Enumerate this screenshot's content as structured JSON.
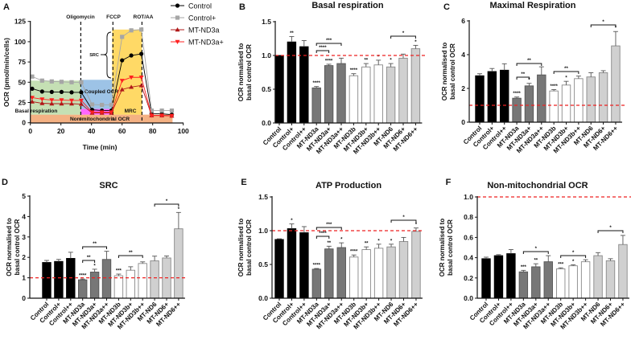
{
  "figure": {
    "ylabel_line1": "OCR normalised to",
    "ylabel_line2": "basal control OCR"
  },
  "colors": {
    "Control": "#000000",
    "MT-ND3a": "#777777",
    "MT-ND3b": "#ffffff",
    "MT-ND6": "#d0d0d0",
    "reference": "#ee2222"
  },
  "chart_data": [
    {
      "panel": "A",
      "type": "line",
      "title": "",
      "xlabel": "Time (min)",
      "ylabel": "OCR (pmol/min/cells)",
      "xlim": [
        0,
        100
      ],
      "ylim": [
        0,
        125
      ],
      "xticks": [
        "0",
        "20",
        "40",
        "60",
        "80",
        "100"
      ],
      "yticks": [
        "0",
        "25",
        "50",
        "75",
        "100",
        "125"
      ],
      "injections": [
        {
          "label": "Oligomycin",
          "x": 33
        },
        {
          "label": "FCCP",
          "x": 54
        },
        {
          "label": "ROT/AA",
          "x": 73
        }
      ],
      "regions": [
        {
          "label": "Non-mitochondrial OCR",
          "x": [
            0,
            93
          ],
          "y": [
            0,
            10
          ],
          "color": "#f4b183"
        },
        {
          "label": "Basal respiration",
          "x": [
            0,
            33
          ],
          "y": [
            10,
            52
          ],
          "color": "#c5e0b4"
        },
        {
          "label": "Coupled OCR",
          "x": [
            33,
            53.5
          ],
          "y": [
            17,
            53
          ],
          "color": "#9dc3e6"
        },
        {
          "label": "",
          "x": [
            33,
            53.5
          ],
          "y": [
            10,
            17
          ],
          "color": "#ff66ff"
        },
        {
          "label": "MRC",
          "x": [
            53.5,
            73
          ],
          "y": [
            10,
            115
          ],
          "color": "#ffd966"
        }
      ],
      "src_label": "SRC",
      "series": [
        {
          "name": "Control",
          "color": "#000000",
          "marker": "circle",
          "x": [
            1.2,
            7.7,
            14,
            20.4,
            27,
            33.3,
            40.4,
            46.8,
            53,
            60,
            66,
            72.6,
            79.3,
            86,
            92.5
          ],
          "y": [
            42,
            38.5,
            38,
            38,
            37.5,
            37.5,
            16,
            15,
            15,
            77,
            83,
            85,
            11,
            11,
            10
          ]
        },
        {
          "name": "Control+",
          "color": "#a6a6a6",
          "marker": "square",
          "x": [
            1.2,
            7.7,
            14,
            20.4,
            27,
            33.3,
            40.4,
            46.8,
            53,
            60,
            66,
            72.6,
            79.3,
            86,
            92.5
          ],
          "y": [
            57,
            52,
            51,
            50.5,
            50,
            50,
            22.5,
            22,
            22,
            106,
            114,
            115,
            15,
            15,
            15
          ]
        },
        {
          "name": "MT-ND3a",
          "color": "#b01818",
          "marker": "triangle-up",
          "x": [
            1.2,
            7.7,
            14,
            20.4,
            27,
            33.3,
            40.4,
            46.8,
            53,
            60,
            66,
            72.6,
            79.3,
            86,
            92.5
          ],
          "y": [
            26,
            24,
            23.5,
            23.5,
            23.5,
            23,
            12,
            12,
            12,
            41,
            44,
            46,
            9,
            9,
            8.5
          ]
        },
        {
          "name": "MT-ND3a+",
          "color": "#ff2020",
          "marker": "triangle-down",
          "x": [
            1.2,
            7.7,
            14,
            20.4,
            27,
            33.3,
            40.4,
            46.8,
            53,
            60,
            66,
            72.6,
            79.3,
            86,
            92.5
          ],
          "y": [
            31,
            29,
            28,
            28,
            27.5,
            27.5,
            13,
            13,
            13,
            52,
            56,
            56,
            9,
            9,
            8.5
          ]
        }
      ]
    },
    {
      "panel": "B",
      "type": "bar",
      "title": "Basal respiration",
      "ylabel": "OCR normalised to basal control OCR",
      "categories": [
        "Control",
        "Control+",
        "Control++",
        "MT-ND3a",
        "MT-ND3a+",
        "MT-ND3a++",
        "MT-ND3b",
        "MT-ND3b+",
        "MT-ND3b++",
        "MT-ND6",
        "MT-ND6+",
        "MT-ND6++"
      ],
      "groups": [
        "Control",
        "Control",
        "Control",
        "MT-ND3a",
        "MT-ND3a",
        "MT-ND3a",
        "MT-ND3b",
        "MT-ND3b",
        "MT-ND3b",
        "MT-ND6",
        "MT-ND6",
        "MT-ND6"
      ],
      "values": [
        1.0,
        1.2,
        1.13,
        0.52,
        0.85,
        0.88,
        0.7,
        0.83,
        0.86,
        0.83,
        0.96,
        1.1
      ],
      "errors": [
        0.0,
        0.08,
        0.09,
        0.02,
        0.02,
        0.08,
        0.03,
        0.05,
        0.07,
        0.05,
        0.06,
        0.05
      ],
      "stars": [
        "",
        "**",
        "",
        "****",
        "****",
        "",
        "****",
        "**",
        "*",
        "*",
        "",
        "*"
      ],
      "brackets": [
        {
          "from": 3,
          "to": 4,
          "label": "****"
        },
        {
          "from": 3,
          "to": 5,
          "label": "***"
        },
        {
          "from": 9,
          "to": 11,
          "label": "*"
        }
      ],
      "reference_line": 1.0,
      "ylim": [
        0,
        1.5
      ],
      "yticks": [
        "0.0",
        "0.5",
        "1.0",
        "1.5"
      ]
    },
    {
      "panel": "C",
      "type": "bar",
      "title": "Maximal Respiration",
      "ylabel": "OCR normalised to basal control OCR",
      "categories": [
        "Control",
        "Control+",
        "Control++",
        "MT-ND3a",
        "MT-ND3a+",
        "MT-ND3a++",
        "MT-ND3b",
        "MT-ND3b+",
        "MT-ND3b++",
        "MT-ND6",
        "MT-ND6+",
        "MT-ND6++"
      ],
      "groups": [
        "Control",
        "Control",
        "Control",
        "MT-ND3a",
        "MT-ND3a",
        "MT-ND3a",
        "MT-ND3b",
        "MT-ND3b",
        "MT-ND3b",
        "MT-ND6",
        "MT-ND6",
        "MT-ND6"
      ],
      "values": [
        2.75,
        3.0,
        3.08,
        1.42,
        2.15,
        2.8,
        1.85,
        2.2,
        2.58,
        2.68,
        2.93,
        4.52
      ],
      "errors": [
        0.12,
        0.18,
        0.38,
        0.07,
        0.15,
        0.48,
        0.08,
        0.22,
        0.15,
        0.25,
        0.12,
        0.85
      ],
      "stars": [
        "",
        "",
        "",
        "****",
        "*",
        "",
        "****",
        "*",
        "",
        "",
        "",
        "*"
      ],
      "brackets": [
        {
          "from": 3,
          "to": 4,
          "label": "**"
        },
        {
          "from": 3,
          "to": 5,
          "label": "**"
        },
        {
          "from": 6,
          "to": 8,
          "label": "**"
        },
        {
          "from": 9,
          "to": 11,
          "label": "*"
        }
      ],
      "reference_line": 1.0,
      "ylim": [
        0,
        6
      ],
      "yticks": [
        "0",
        "2",
        "4",
        "6"
      ]
    },
    {
      "panel": "D",
      "type": "bar",
      "title": "SRC",
      "ylabel": "OCR normalised to basal control OCR",
      "categories": [
        "Control",
        "Control+",
        "Control++",
        "MT-ND3a",
        "MT-ND3a+",
        "MT-ND3a++",
        "MT-ND3b",
        "MT-ND3b+",
        "MT-ND3b++",
        "MT-ND6",
        "MT-ND6+",
        "MT-ND6++"
      ],
      "groups": [
        "Control",
        "Control",
        "Control",
        "MT-ND3a",
        "MT-ND3a",
        "MT-ND3a",
        "MT-ND3b",
        "MT-ND3b",
        "MT-ND3b",
        "MT-ND6",
        "MT-ND6",
        "MT-ND6"
      ],
      "values": [
        1.75,
        1.8,
        1.95,
        0.9,
        1.28,
        1.9,
        1.1,
        1.37,
        1.7,
        1.83,
        1.97,
        3.4
      ],
      "errors": [
        0.1,
        0.1,
        0.3,
        0.04,
        0.14,
        0.4,
        0.08,
        0.17,
        0.08,
        0.23,
        0.1,
        0.8
      ],
      "stars": [
        "",
        "",
        "",
        "****",
        "*",
        "",
        "***",
        "",
        "",
        "",
        "",
        "*"
      ],
      "brackets": [
        {
          "from": 3,
          "to": 4,
          "label": "**"
        },
        {
          "from": 3,
          "to": 5,
          "label": "**"
        },
        {
          "from": 6,
          "to": 8,
          "label": "**"
        },
        {
          "from": 9,
          "to": 11,
          "label": "*"
        }
      ],
      "reference_line": 1.0,
      "ylim": [
        0,
        5
      ],
      "yticks": [
        "0",
        "1",
        "2",
        "3",
        "4",
        "5"
      ]
    },
    {
      "panel": "E",
      "type": "bar",
      "title": "ATP Production",
      "ylabel": "OCR normalised to basal control OCR",
      "categories": [
        "Control",
        "Control+",
        "Control++",
        "MT-ND3a",
        "MT-ND3a+",
        "MT-ND3a++",
        "MT-ND3b",
        "MT-ND3b+",
        "MT-ND3b++",
        "MT-ND6",
        "MT-ND6+",
        "MT-ND6++"
      ],
      "groups": [
        "Control",
        "Control",
        "Control",
        "MT-ND3a",
        "MT-ND3a",
        "MT-ND3a",
        "MT-ND3b",
        "MT-ND3b",
        "MT-ND3b",
        "MT-ND6",
        "MT-ND6",
        "MT-ND6"
      ],
      "values": [
        0.87,
        1.03,
        0.97,
        0.43,
        0.73,
        0.75,
        0.61,
        0.72,
        0.74,
        0.76,
        0.84,
        0.99
      ],
      "errors": [
        0.01,
        0.07,
        0.09,
        0.01,
        0.04,
        0.07,
        0.03,
        0.04,
        0.06,
        0.04,
        0.06,
        0.05
      ],
      "stars": [
        "",
        "*",
        "",
        "****",
        "**",
        "*",
        "****",
        "**",
        "*",
        "*",
        "",
        "*"
      ],
      "brackets": [
        {
          "from": 3,
          "to": 4,
          "label": "****"
        },
        {
          "from": 3,
          "to": 5,
          "label": "***"
        },
        {
          "from": 9,
          "to": 11,
          "label": "*"
        }
      ],
      "reference_line": 1.0,
      "ylim": [
        0,
        1.5
      ],
      "yticks": [
        "0.0",
        "0.5",
        "1.0",
        "1.5"
      ]
    },
    {
      "panel": "F",
      "type": "bar",
      "title": "Non-mitochondrial OCR",
      "ylabel": "OCR normalised to basal control OCR",
      "categories": [
        "Control",
        "Control+",
        "Control++",
        "MT-ND3a",
        "MT-ND3a+",
        "MT-ND3a++",
        "MT-ND3b",
        "MT-ND3b+",
        "MT-ND3b++",
        "MT-ND6",
        "MT-ND6+",
        "MT-ND6++"
      ],
      "groups": [
        "Control",
        "Control",
        "Control",
        "MT-ND3a",
        "MT-ND3a",
        "MT-ND3a",
        "MT-ND3b",
        "MT-ND3b",
        "MT-ND3b",
        "MT-ND6",
        "MT-ND6",
        "MT-ND6"
      ],
      "values": [
        0.39,
        0.42,
        0.44,
        0.26,
        0.31,
        0.36,
        0.29,
        0.32,
        0.36,
        0.42,
        0.37,
        0.53
      ],
      "errors": [
        0.015,
        0.01,
        0.04,
        0.015,
        0.03,
        0.06,
        0.01,
        0.01,
        0.02,
        0.03,
        0.02,
        0.09
      ],
      "stars": [
        "",
        "",
        "",
        "***",
        "**",
        "",
        "***",
        "*",
        "",
        "",
        "",
        ""
      ],
      "brackets": [
        {
          "from": 3,
          "to": 5,
          "label": "*"
        },
        {
          "from": 6,
          "to": 8,
          "label": "*"
        },
        {
          "from": 9,
          "to": 11,
          "label": "*"
        }
      ],
      "reference_line": 1.0,
      "ylim": [
        0,
        1.0
      ],
      "yticks": [
        "0.0",
        "0.2",
        "0.4",
        "0.6",
        "0.8",
        "1.0"
      ]
    }
  ]
}
